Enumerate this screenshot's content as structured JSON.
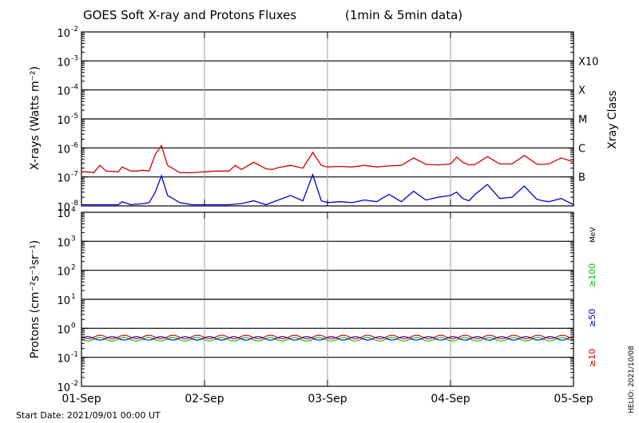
{
  "chart_data": [
    {
      "type": "line",
      "title": "GOES Soft X-ray and Protons Fluxes",
      "title_note": "(1min & 5min data)",
      "ylabel": "X-rays (Watts m⁻²)",
      "yscale": "log",
      "ylim": [
        1e-08,
        0.01
      ],
      "y_tick_labels": [
        {
          "base": "10",
          "exp": "-2"
        },
        {
          "base": "10",
          "exp": "-3"
        },
        {
          "base": "10",
          "exp": "-4"
        },
        {
          "base": "10",
          "exp": "-5"
        },
        {
          "base": "10",
          "exp": "-6"
        },
        {
          "base": "10",
          "exp": "-7"
        },
        {
          "base": "10",
          "exp": "-8"
        }
      ],
      "x_tick_labels": [
        "01-Sep",
        "02-Sep",
        "03-Sep",
        "04-Sep",
        "05-Sep"
      ],
      "xlim": [
        "2021-09-01",
        "2021-09-05"
      ],
      "right_axis_title": "Xray Class",
      "flare_classes": [
        {
          "label": "X10",
          "flux": 0.001
        },
        {
          "label": "X",
          "flux": 0.0001
        },
        {
          "label": "M",
          "flux": 1e-05
        },
        {
          "label": "C",
          "flux": 1e-06
        },
        {
          "label": "B",
          "flux": 1e-07
        }
      ],
      "grid": true,
      "series": [
        {
          "color": "#d00000",
          "x_days": [
            0,
            0.05,
            0.1,
            0.15,
            0.2,
            0.3,
            0.33,
            0.4,
            0.45,
            0.5,
            0.55,
            0.6,
            0.65,
            0.7,
            0.8,
            0.9,
            1.0,
            1.1,
            1.2,
            1.25,
            1.3,
            1.4,
            1.5,
            1.55,
            1.6,
            1.7,
            1.8,
            1.88,
            1.95,
            2.0,
            2.1,
            2.2,
            2.3,
            2.4,
            2.5,
            2.6,
            2.7,
            2.8,
            2.9,
            3.0,
            3.05,
            3.1,
            3.15,
            3.2,
            3.3,
            3.4,
            3.5,
            3.6,
            3.7,
            3.75,
            3.8,
            3.9,
            4.0
          ],
          "y": [
            1.5e-07,
            1.5e-07,
            1.4e-07,
            2.5e-07,
            1.6e-07,
            1.5e-07,
            2.2e-07,
            1.6e-07,
            1.6e-07,
            1.7e-07,
            1.6e-07,
            6e-07,
            1.2e-06,
            2.5e-07,
            1.4e-07,
            1.4e-07,
            1.5e-07,
            1.6e-07,
            1.6e-07,
            2.5e-07,
            1.8e-07,
            3.2e-07,
            1.9e-07,
            1.8e-07,
            2.1e-07,
            2.5e-07,
            2e-07,
            7e-07,
            2.5e-07,
            2.2e-07,
            2.3e-07,
            2.2e-07,
            2.5e-07,
            2.2e-07,
            2.4e-07,
            2.5e-07,
            4.5e-07,
            2.7e-07,
            2.6e-07,
            2.8e-07,
            4.8e-07,
            3.2e-07,
            2.6e-07,
            2.7e-07,
            5e-07,
            2.8e-07,
            2.8e-07,
            5.5e-07,
            2.8e-07,
            2.7e-07,
            2.8e-07,
            4.5e-07,
            3.3e-07
          ]
        },
        {
          "color": "#0000d0",
          "x_days": [
            0,
            0.1,
            0.2,
            0.3,
            0.33,
            0.4,
            0.5,
            0.55,
            0.6,
            0.65,
            0.7,
            0.8,
            0.9,
            1.0,
            1.1,
            1.2,
            1.3,
            1.4,
            1.5,
            1.6,
            1.7,
            1.8,
            1.88,
            1.95,
            2.0,
            2.1,
            2.2,
            2.3,
            2.4,
            2.5,
            2.6,
            2.7,
            2.8,
            2.9,
            3.0,
            3.05,
            3.1,
            3.15,
            3.2,
            3.3,
            3.4,
            3.5,
            3.6,
            3.7,
            3.75,
            3.8,
            3.9,
            4.0
          ],
          "y": [
            1.1e-08,
            1.1e-08,
            1.1e-08,
            1.1e-08,
            1.4e-08,
            1.1e-08,
            1.2e-08,
            1.3e-08,
            3e-08,
            1.1e-07,
            2.3e-08,
            1.3e-08,
            1.1e-08,
            1.1e-08,
            1.1e-08,
            1.1e-08,
            1.2e-08,
            1.5e-08,
            1.1e-08,
            1.6e-08,
            2.3e-08,
            1.5e-08,
            1.2e-07,
            1.5e-08,
            1.3e-08,
            1.4e-08,
            1.3e-08,
            1.6e-08,
            1.4e-08,
            2.5e-08,
            1.4e-08,
            3.2e-08,
            1.6e-08,
            2e-08,
            2.3e-08,
            3e-08,
            1.8e-08,
            1.5e-08,
            2.5e-08,
            5.5e-08,
            1.8e-08,
            2e-08,
            4.8e-08,
            1.7e-08,
            1.5e-08,
            1.4e-08,
            1.8e-08,
            1.1e-08
          ]
        }
      ]
    },
    {
      "type": "line",
      "ylabel": "Protons (cm⁻²s⁻¹sr⁻¹)",
      "yscale": "log",
      "ylim": [
        0.01,
        10000
      ],
      "y_tick_labels": [
        {
          "base": "10",
          "exp": "4"
        },
        {
          "base": "10",
          "exp": "3"
        },
        {
          "base": "10",
          "exp": "2"
        },
        {
          "base": "10",
          "exp": "1"
        },
        {
          "base": "10",
          "exp": "0"
        },
        {
          "base": "10",
          "exp": "-1"
        },
        {
          "base": "10",
          "exp": "-2"
        }
      ],
      "x_tick_labels": [
        "01-Sep",
        "02-Sep",
        "03-Sep",
        "04-Sep",
        "05-Sep"
      ],
      "xlim": [
        "2021-09-01",
        "2021-09-05"
      ],
      "threshold": 10,
      "grid": true,
      "right_axis_title": "MeV",
      "series": [
        {
          "name": "≥100",
          "color": "#00c000",
          "level": 0.42
        },
        {
          "name": "≥50",
          "color": "#0000c0",
          "level": 0.45
        },
        {
          "name": "≥10",
          "color": "#d00000",
          "level": 0.5
        }
      ]
    }
  ],
  "footer": {
    "start_date": "Start Date: 2021/09/01 00:00 UT",
    "stamp": "HELIO: 2021/10/08"
  }
}
